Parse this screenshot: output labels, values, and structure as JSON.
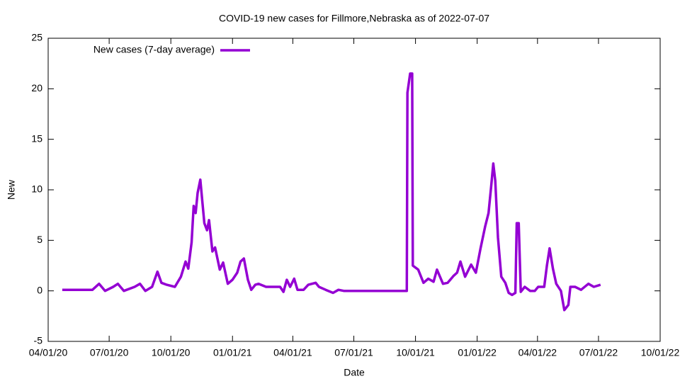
{
  "chart_data": {
    "type": "line",
    "title": "COVID-19 new cases for Fillmore,Nebraska as of 2022-07-07",
    "x_label": "Date",
    "y_label": "New",
    "x": [
      "04/22/20",
      "05/15/20",
      "06/06/20",
      "06/16/20",
      "06/25/20",
      "07/07/20",
      "07/14/20",
      "07/23/20",
      "08/08/20",
      "08/16/20",
      "08/24/20",
      "09/03/20",
      "09/11/20",
      "09/17/20",
      "09/25/20",
      "10/07/20",
      "10/16/20",
      "10/23/20",
      "10/27/20",
      "11/01/20",
      "11/04/20",
      "11/07/20",
      "11/10/20",
      "11/14/20",
      "11/17/20",
      "11/20/20",
      "11/24/20",
      "11/27/20",
      "12/02/20",
      "12/06/20",
      "12/13/20",
      "12/18/20",
      "12/25/20",
      "01/01/21",
      "01/08/21",
      "01/13/21",
      "01/18/21",
      "01/24/21",
      "01/29/21",
      "02/04/21",
      "02/09/21",
      "02/20/21",
      "03/02/21",
      "03/13/21",
      "03/18/21",
      "03/23/21",
      "03/28/21",
      "04/03/21",
      "04/08/21",
      "04/17/21",
      "04/24/21",
      "05/05/21",
      "05/10/21",
      "05/20/21",
      "05/31/21",
      "06/08/21",
      "06/16/21",
      "09/18/21",
      "09/19/21",
      "09/23/21",
      "09/26/21",
      "09/27/21",
      "10/05/21",
      "10/13/21",
      "10/20/21",
      "10/28/21",
      "11/02/21",
      "11/11/21",
      "11/18/21",
      "11/27/21",
      "12/02/21",
      "12/07/21",
      "12/14/21",
      "12/23/21",
      "12/30/21",
      "01/06/22",
      "01/13/22",
      "01/18/22",
      "01/22/22",
      "01/25/22",
      "01/28/22",
      "02/01/22",
      "02/06/22",
      "02/12/22",
      "02/17/22",
      "02/22/22",
      "02/27/22",
      "03/01/22",
      "03/04/22",
      "03/07/22",
      "03/13/22",
      "03/21/22",
      "03/28/22",
      "04/02/22",
      "04/11/22",
      "04/15/22",
      "04/19/22",
      "04/24/22",
      "04/29/22",
      "05/06/22",
      "05/11/22",
      "05/17/22",
      "05/20/22",
      "05/27/22",
      "06/05/22",
      "06/16/22",
      "06/24/22",
      "07/04/22"
    ],
    "series": [
      {
        "name": "New cases (7-day average)",
        "color": "#9400d3",
        "values": [
          0.1,
          0.1,
          0.1,
          0.7,
          0,
          0.4,
          0.7,
          0,
          0.4,
          0.7,
          0,
          0.4,
          1.9,
          0.8,
          0.6,
          0.4,
          1.4,
          2.9,
          2.2,
          4.8,
          8.4,
          7.7,
          9.7,
          11,
          8.8,
          6.7,
          6,
          7,
          3.9,
          4.3,
          2.1,
          2.8,
          0.7,
          1.1,
          1.8,
          2.9,
          3.2,
          1.1,
          0.1,
          0.6,
          0.7,
          0.4,
          0.4,
          0.4,
          -0.1,
          1.1,
          0.4,
          1.2,
          0.1,
          0.1,
          0.6,
          0.8,
          0.4,
          0.1,
          -0.2,
          0.1,
          0,
          0,
          19.6,
          21.5,
          21.5,
          2.5,
          2.1,
          0.8,
          1.2,
          0.9,
          2.1,
          0.7,
          0.8,
          1.5,
          1.8,
          2.9,
          1.4,
          2.6,
          1.8,
          4.2,
          6.4,
          7.7,
          10.4,
          12.6,
          10.9,
          5.3,
          1.4,
          0.8,
          -0.2,
          -0.4,
          -0.2,
          6.7,
          6.7,
          -0.1,
          0.4,
          0,
          0,
          0.4,
          0.4,
          2.5,
          4.2,
          2.2,
          0.7,
          0,
          -1.9,
          -1.4,
          0.4,
          0.4,
          0.1,
          0.7,
          0.4,
          0.6
        ]
      }
    ],
    "xlim": [
      "04/01/20",
      "10/01/22"
    ],
    "xticks": [
      "04/01/20",
      "07/01/20",
      "10/01/20",
      "01/01/21",
      "04/01/21",
      "07/01/21",
      "10/01/21",
      "01/01/22",
      "04/01/22",
      "07/01/22",
      "10/01/22"
    ],
    "ylim": [
      -5,
      25
    ],
    "yticks": [
      -5,
      0,
      5,
      10,
      15,
      20,
      25
    ],
    "legend": "top-left"
  }
}
